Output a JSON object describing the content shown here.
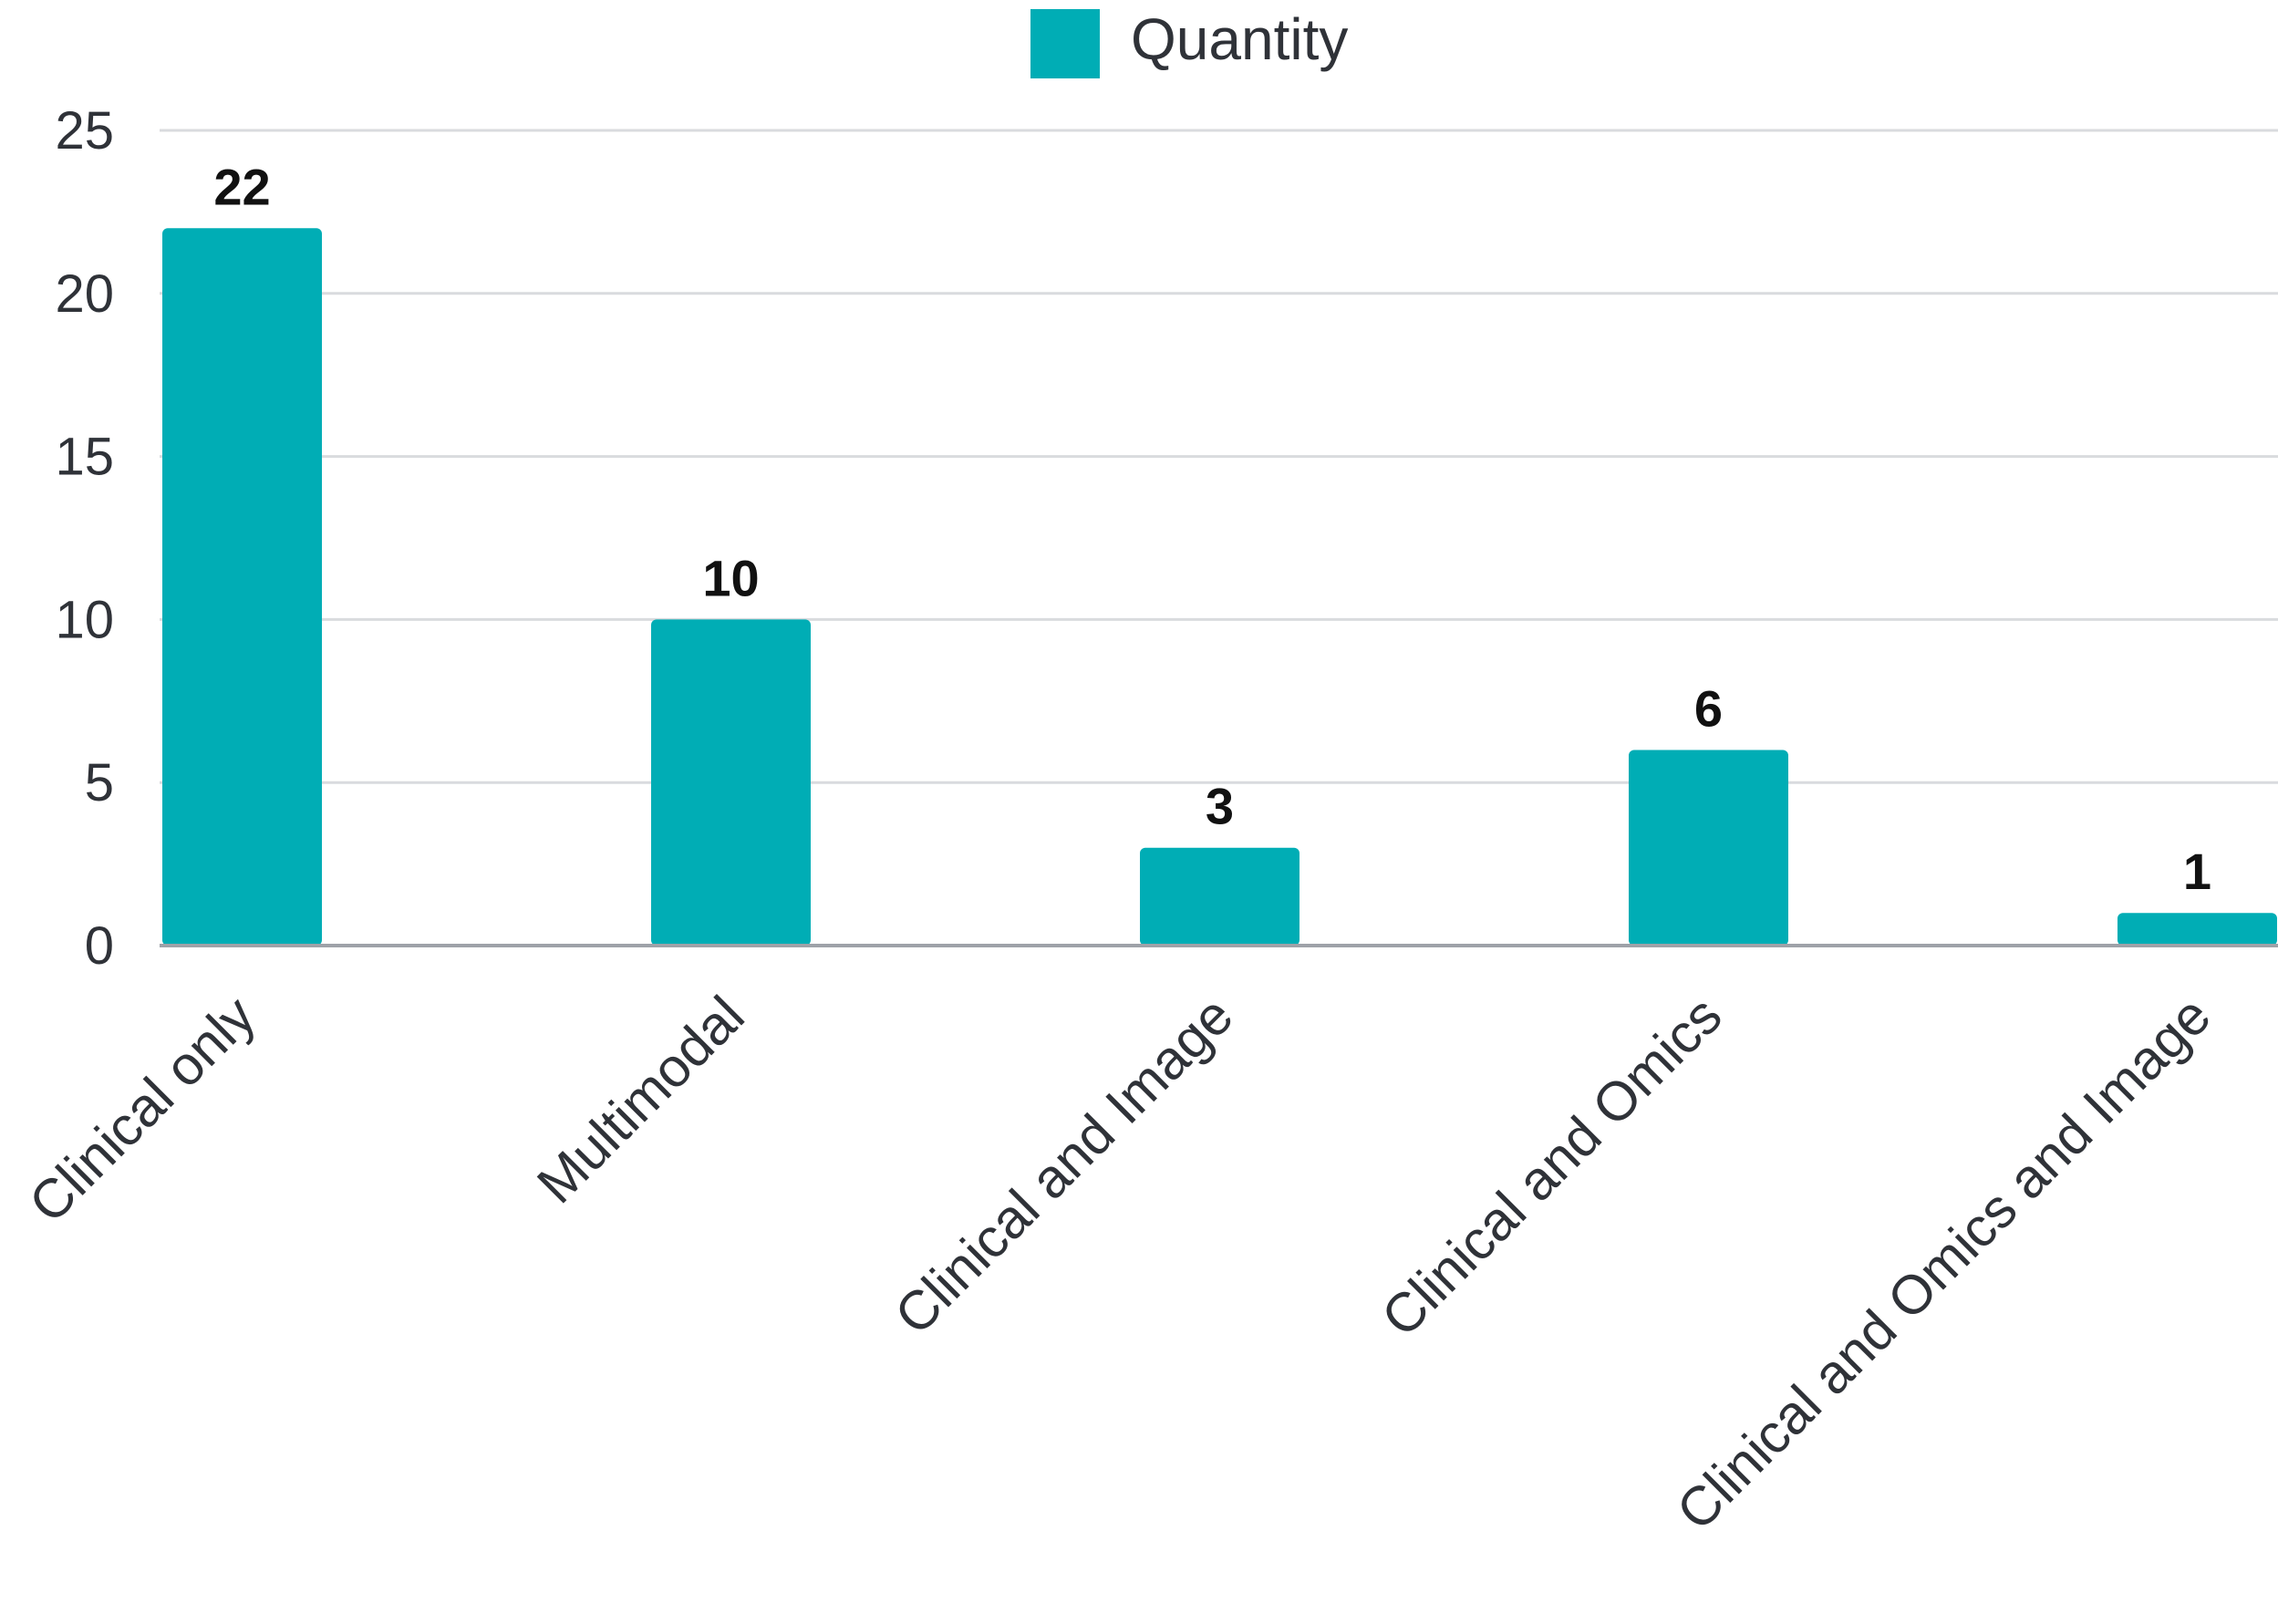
{
  "chart_data": {
    "type": "bar",
    "categories": [
      "Clinical only",
      "Multimodal",
      "Clinical and Image",
      "Clinical and Omics",
      "Clinical and Omics and Image"
    ],
    "series": [
      {
        "name": "Quantity",
        "values": [
          22,
          10,
          3,
          6,
          1
        ],
        "color": "#00adb5"
      }
    ],
    "data_labels": [
      "22",
      "10",
      "3",
      "6",
      "1"
    ],
    "yticks": [
      0,
      5,
      10,
      15,
      20,
      25
    ],
    "ylim": [
      0,
      25
    ],
    "grid": true,
    "legend_position": "top-center",
    "category_label_rotation": "-45deg",
    "colors": {
      "bar": "#00adb5",
      "text": "#2f3238",
      "data_label": "#111111",
      "grid": "#d9dbde"
    }
  }
}
